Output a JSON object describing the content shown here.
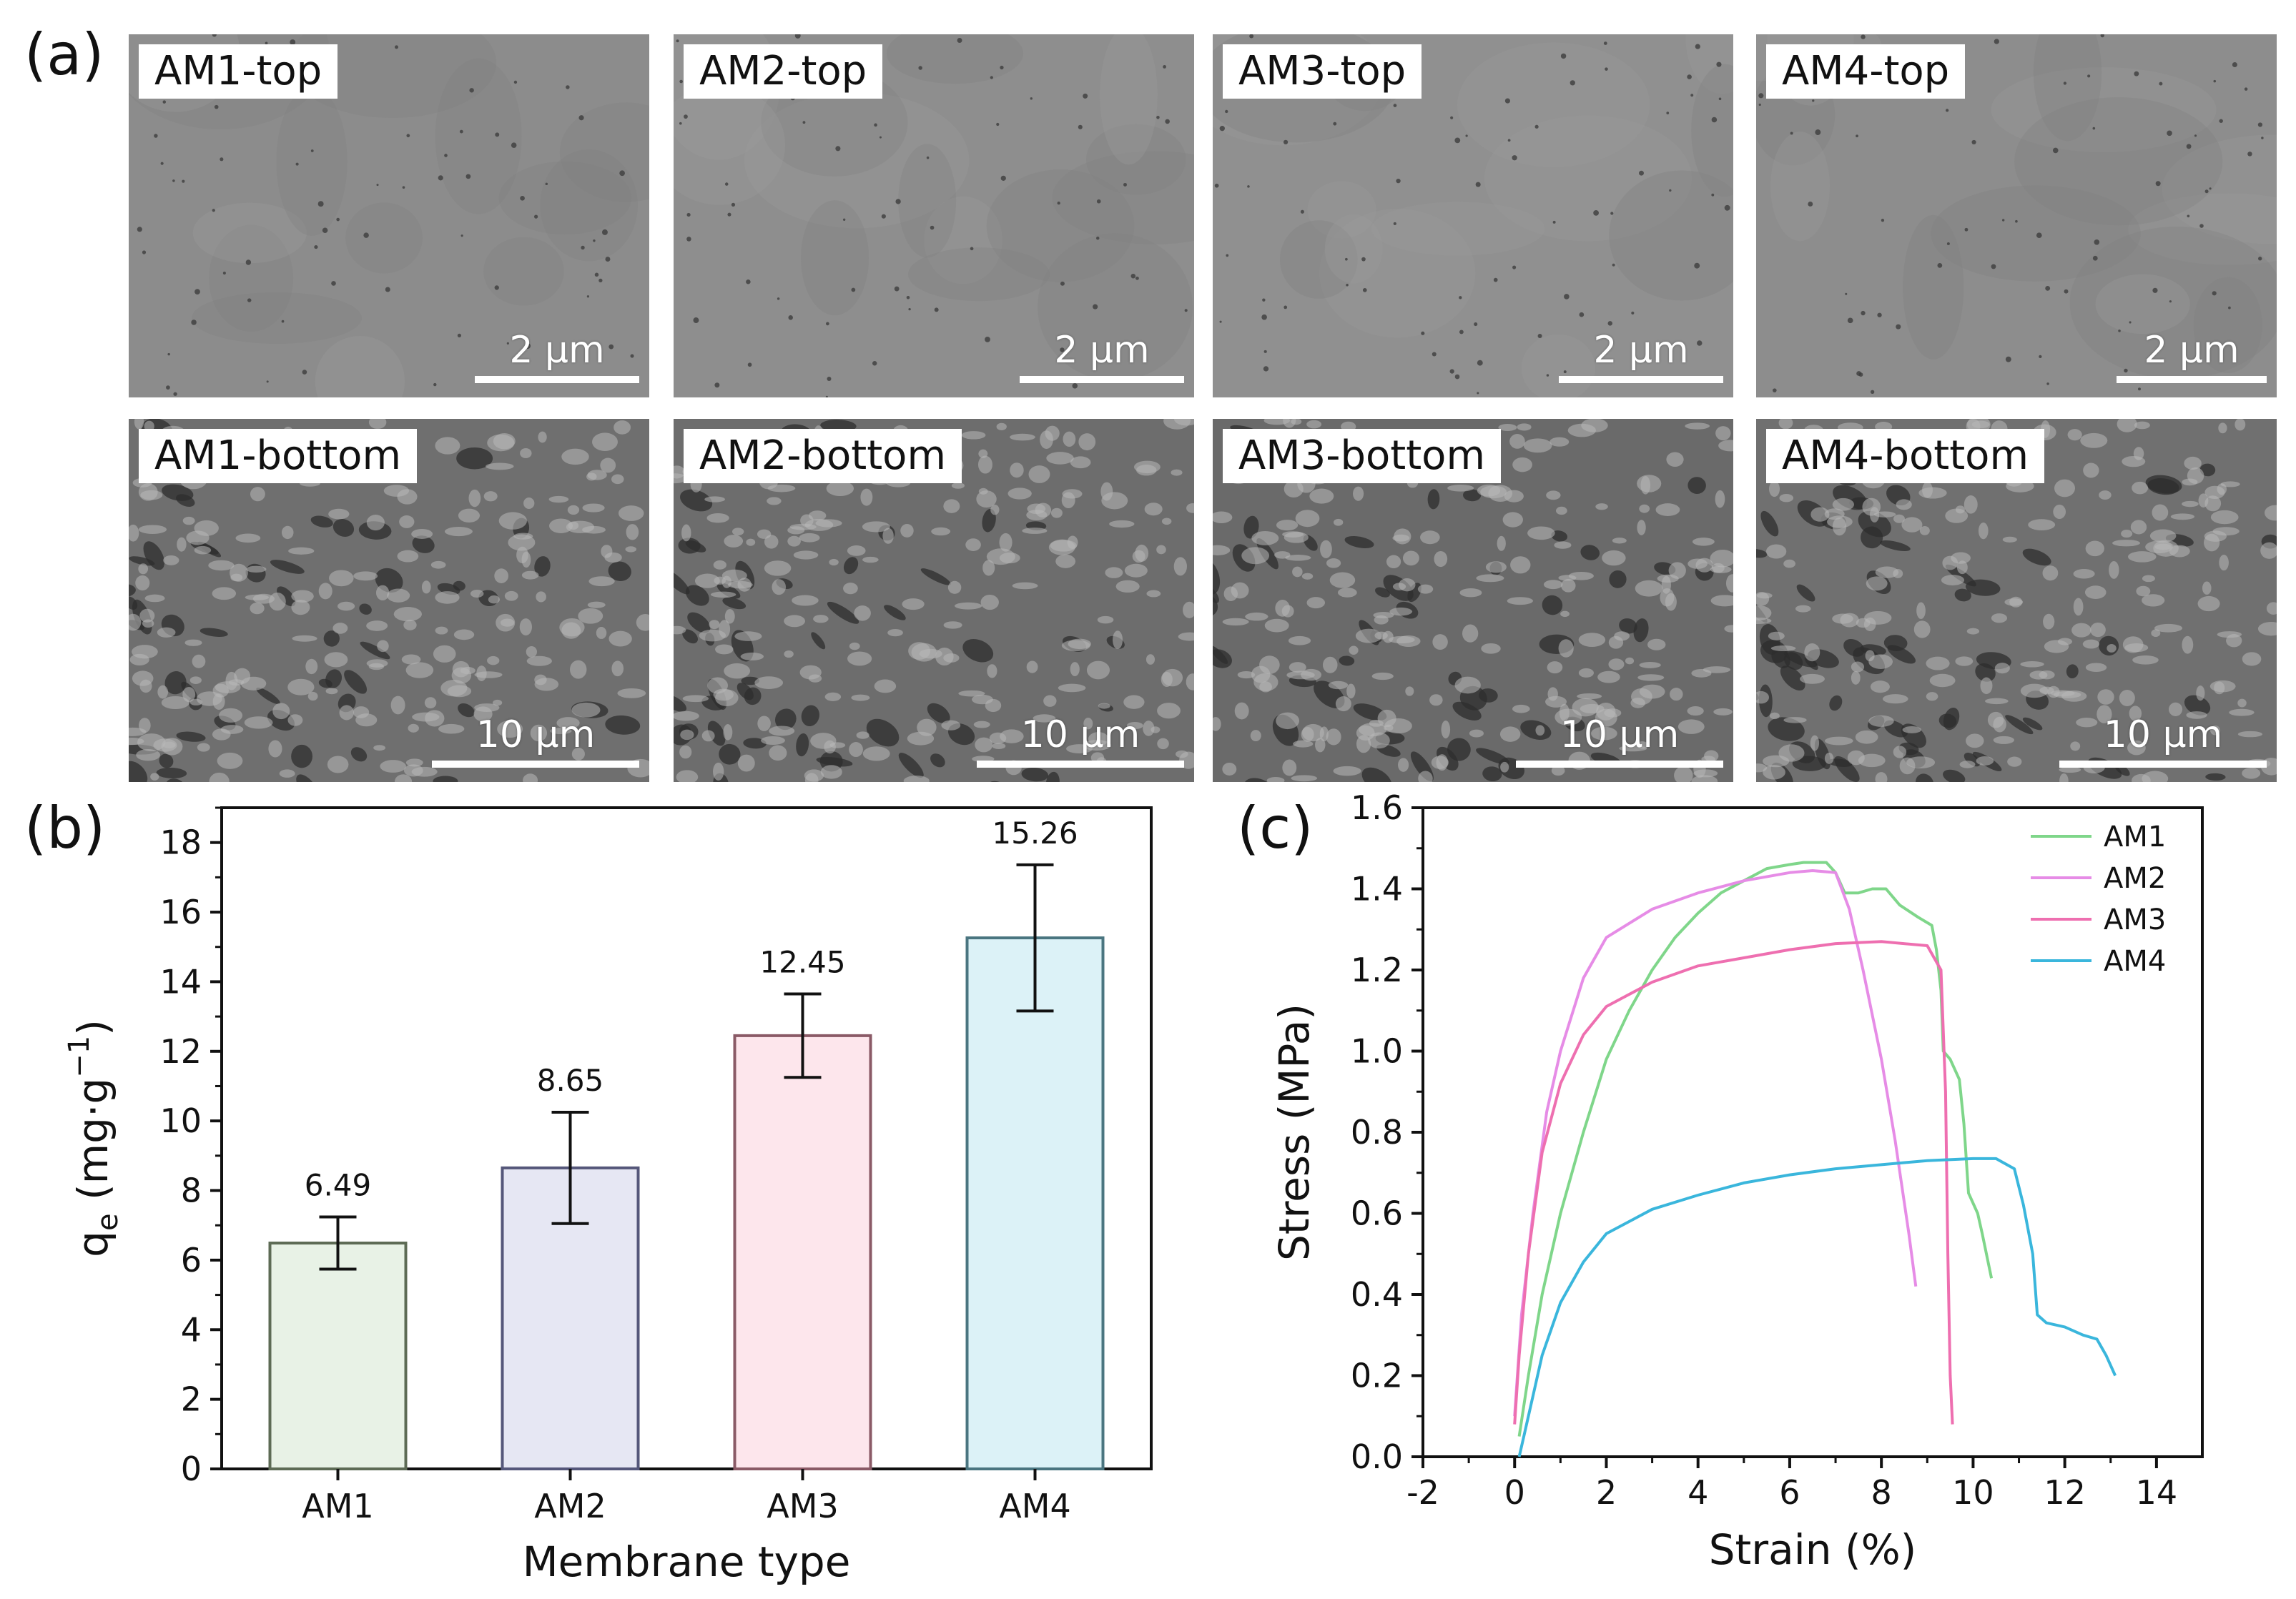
{
  "figure": {
    "panel_labels": {
      "a": "(a)",
      "b": "(b)",
      "c": "(c)"
    },
    "sem_images": {
      "top_row": [
        {
          "label": "AM1-top",
          "scale": "2 μm"
        },
        {
          "label": "AM2-top",
          "scale": "2 μm"
        },
        {
          "label": "AM3-top",
          "scale": "2 μm"
        },
        {
          "label": "AM4-top",
          "scale": "2 μm"
        }
      ],
      "bottom_row": [
        {
          "label": "AM1-bottom",
          "scale": "10 μm"
        },
        {
          "label": "AM2-bottom",
          "scale": "10 μm"
        },
        {
          "label": "AM3-bottom",
          "scale": "10 μm"
        },
        {
          "label": "AM4-bottom",
          "scale": "10 μm"
        }
      ]
    }
  },
  "chart_data": [
    {
      "type": "bar",
      "title": "",
      "xlabel": "Membrane type",
      "ylabel_main": "q",
      "ylabel_sub": "e",
      "ylabel_units": "(mg·g",
      "ylabel_exp": "−1",
      "ylabel_close": ")",
      "categories": [
        "AM1",
        "AM2",
        "AM3",
        "AM4"
      ],
      "values": [
        6.49,
        8.65,
        12.45,
        15.26
      ],
      "value_labels": [
        "6.49",
        "8.65",
        "12.45",
        "15.26"
      ],
      "error": [
        0.75,
        1.6,
        1.2,
        2.1
      ],
      "colors": [
        "#e8f2e6",
        "#e6e7f3",
        "#fde6ec",
        "#dcf2f7"
      ],
      "edge_colors": [
        "#5d6b55",
        "#55577a",
        "#8a5a66",
        "#4a7580"
      ],
      "ylim": [
        0,
        19
      ],
      "yticks": [
        "0",
        "2",
        "4",
        "6",
        "8",
        "10",
        "12",
        "14",
        "16",
        "18"
      ]
    },
    {
      "type": "line",
      "title": "",
      "xlabel": "Strain (%)",
      "ylabel": "Stress (MPa)",
      "xlim": [
        -2,
        15
      ],
      "ylim": [
        0,
        1.6
      ],
      "xticks": [
        "-2",
        "0",
        "2",
        "4",
        "6",
        "8",
        "10",
        "12",
        "14"
      ],
      "yticks": [
        "0.0",
        "0.2",
        "0.4",
        "0.6",
        "0.8",
        "1.0",
        "1.2",
        "1.4",
        "1.6"
      ],
      "legend_position": "top-right",
      "series": [
        {
          "name": "AM1",
          "color": "#7fd68a",
          "x": [
            0.1,
            0.3,
            0.6,
            1.0,
            1.5,
            2.0,
            2.5,
            3.0,
            3.5,
            4.0,
            4.5,
            5.0,
            5.5,
            6.0,
            6.3,
            6.8,
            7.0,
            7.2,
            7.5,
            7.8,
            8.1,
            8.4,
            8.8,
            9.1,
            9.2,
            9.3,
            9.35,
            9.5,
            9.7,
            9.8,
            9.9,
            10.1,
            10.2,
            10.4
          ],
          "y": [
            0.05,
            0.2,
            0.4,
            0.6,
            0.8,
            0.98,
            1.1,
            1.2,
            1.28,
            1.34,
            1.39,
            1.42,
            1.45,
            1.46,
            1.465,
            1.465,
            1.44,
            1.39,
            1.39,
            1.4,
            1.4,
            1.36,
            1.33,
            1.31,
            1.25,
            1.15,
            1.0,
            0.98,
            0.93,
            0.82,
            0.65,
            0.6,
            0.55,
            0.44
          ]
        },
        {
          "name": "AM2",
          "color": "#e68ce6",
          "x": [
            0.0,
            0.15,
            0.4,
            0.7,
            1.0,
            1.5,
            2.0,
            3.0,
            4.0,
            5.0,
            6.0,
            6.5,
            7.0,
            7.3,
            7.6,
            8.0,
            8.3,
            8.6,
            8.75
          ],
          "y": [
            0.1,
            0.35,
            0.6,
            0.85,
            1.0,
            1.18,
            1.28,
            1.35,
            1.39,
            1.42,
            1.44,
            1.445,
            1.44,
            1.35,
            1.2,
            0.98,
            0.78,
            0.55,
            0.42
          ]
        },
        {
          "name": "AM3",
          "color": "#ee6fb0",
          "x": [
            0.0,
            0.1,
            0.3,
            0.6,
            1.0,
            1.5,
            2.0,
            3.0,
            4.0,
            5.0,
            6.0,
            7.0,
            8.0,
            9.0,
            9.3,
            9.4,
            9.45,
            9.5,
            9.55
          ],
          "y": [
            0.08,
            0.25,
            0.5,
            0.75,
            0.92,
            1.04,
            1.11,
            1.17,
            1.21,
            1.23,
            1.25,
            1.265,
            1.27,
            1.26,
            1.2,
            0.9,
            0.5,
            0.2,
            0.08
          ]
        },
        {
          "name": "AM4",
          "color": "#3ab6dc",
          "x": [
            0.1,
            0.2,
            0.4,
            0.6,
            1.0,
            1.5,
            2.0,
            3.0,
            4.0,
            5.0,
            6.0,
            7.0,
            8.0,
            9.0,
            10.0,
            10.5,
            10.9,
            11.1,
            11.3,
            11.4,
            11.6,
            12.0,
            12.4,
            12.7,
            12.9,
            13.1
          ],
          "y": [
            0.0,
            0.05,
            0.15,
            0.25,
            0.38,
            0.48,
            0.55,
            0.61,
            0.645,
            0.675,
            0.695,
            0.71,
            0.72,
            0.73,
            0.735,
            0.735,
            0.71,
            0.62,
            0.5,
            0.35,
            0.33,
            0.32,
            0.3,
            0.29,
            0.25,
            0.2
          ]
        }
      ]
    }
  ]
}
